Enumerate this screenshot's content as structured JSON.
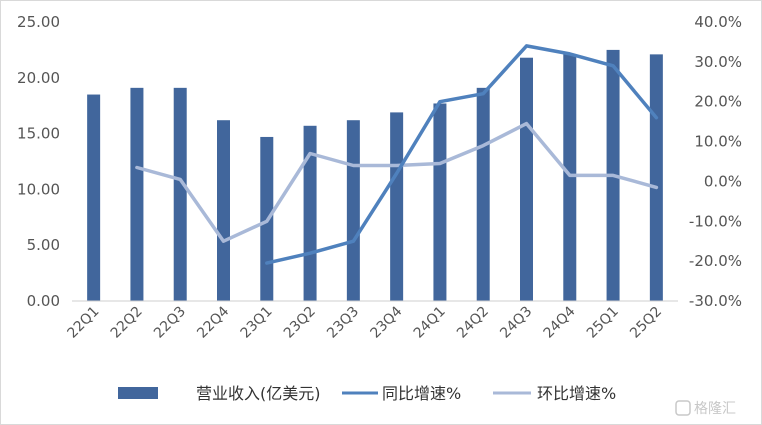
{
  "chart_data": {
    "type": "bar",
    "categories": [
      "22Q1",
      "22Q2",
      "22Q3",
      "22Q4",
      "23Q1",
      "23Q2",
      "23Q3",
      "23Q4",
      "24Q1",
      "24Q2",
      "24Q3",
      "24Q4",
      "25Q1",
      "25Q2"
    ],
    "series": [
      {
        "name": "营业收入(亿美元)",
        "type": "bar",
        "axis": "left",
        "values": [
          18.5,
          19.1,
          19.1,
          16.2,
          14.7,
          15.7,
          16.2,
          16.9,
          17.7,
          19.1,
          21.8,
          22.1,
          22.5,
          22.1
        ]
      },
      {
        "name": "同比增速%",
        "type": "line",
        "axis": "right",
        "values": [
          null,
          null,
          null,
          null,
          -20.5,
          -18.0,
          -15.0,
          2.0,
          20.0,
          22.0,
          34.0,
          32.0,
          29.0,
          16.0
        ]
      },
      {
        "name": "环比增速%",
        "type": "line",
        "axis": "right",
        "values": [
          null,
          3.5,
          0.5,
          -15.0,
          -10.0,
          7.0,
          4.0,
          4.0,
          4.5,
          9.0,
          14.5,
          1.5,
          1.5,
          -1.5
        ]
      }
    ],
    "y_left": {
      "ylim": [
        0,
        25
      ],
      "ticks": [
        "0.00",
        "5.00",
        "10.00",
        "15.00",
        "20.00",
        "25.00"
      ]
    },
    "y_right": {
      "ylim": [
        -30,
        40
      ],
      "ticks": [
        "-30.0%",
        "-20.0%",
        "-10.0%",
        "0.0%",
        "10.0%",
        "20.0%",
        "30.0%",
        "40.0%"
      ]
    },
    "grid": false,
    "legend_position": "bottom",
    "colors": {
      "bar": "#41669c",
      "yoy": "#4f81bd",
      "qoq": "#a9b9d8",
      "axis": "#cfcfcf",
      "frame": "#d9d9d9"
    },
    "watermark": "格隆汇"
  }
}
